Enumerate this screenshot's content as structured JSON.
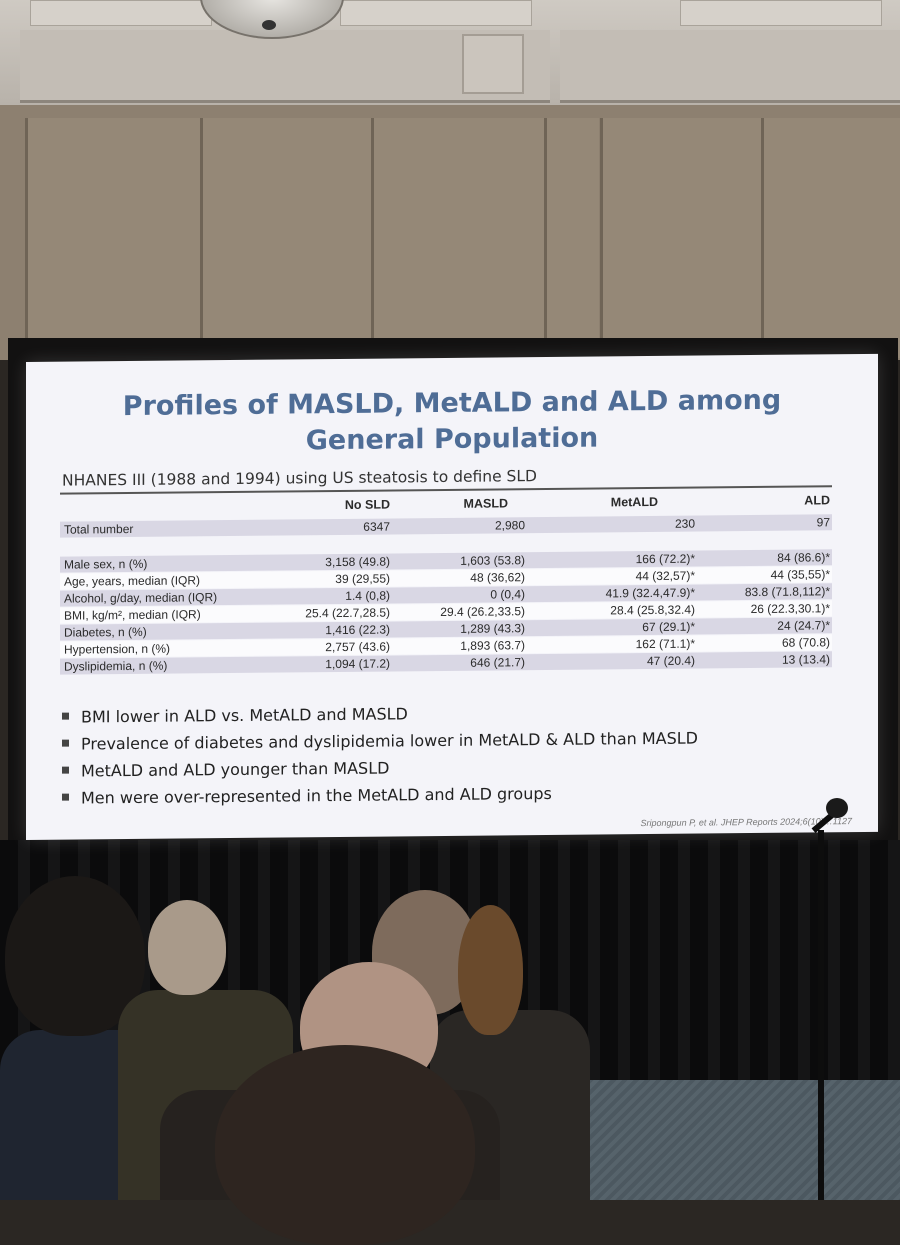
{
  "slide": {
    "title_line1": "Profiles of MASLD, MetALD and ALD among",
    "title_line2": "General Population",
    "subtitle": "NHANES III (1988 and 1994) using US steatosis to define SLD",
    "columns": [
      "No SLD",
      "MASLD",
      "MetALD",
      "ALD"
    ],
    "rows": [
      {
        "label": "Total number",
        "values": [
          "6347",
          "2,980",
          "230",
          "97"
        ]
      },
      {
        "label": "Male sex, n (%)",
        "values": [
          "3,158 (49.8)",
          "1,603 (53.8)",
          "166 (72.2)*",
          "84 (86.6)*"
        ]
      },
      {
        "label": "Age, years, median (IQR)",
        "values": [
          "39 (29,55)",
          "48 (36,62)",
          "44 (32,57)*",
          "44 (35,55)*"
        ]
      },
      {
        "label": "Alcohol, g/day, median (IQR)",
        "values": [
          "1.4 (0,8)",
          "0 (0,4)",
          "41.9 (32.4,47.9)*",
          "83.8 (71.8,112)*"
        ]
      },
      {
        "label": "BMI, kg/m², median (IQR)",
        "values": [
          "25.4 (22.7,28.5)",
          "29.4 (26.2,33.5)",
          "28.4 (25.8,32.4)",
          "26 (22.3,30.1)*"
        ]
      },
      {
        "label": "Diabetes, n (%)",
        "values": [
          "1,416 (22.3)",
          "1,289 (43.3)",
          "67 (29.1)*",
          "24 (24.7)*"
        ]
      },
      {
        "label": "Hypertension, n (%)",
        "values": [
          "2,757 (43.6)",
          "1,893 (63.7)",
          "162 (71.1)*",
          "68 (70.8)"
        ]
      },
      {
        "label": "Dyslipidemia, n (%)",
        "values": [
          "1,094 (17.2)",
          "646 (21.7)",
          "47 (20.4)",
          "13 (13.4)"
        ]
      }
    ],
    "bullets": [
      "BMI lower in ALD vs. MetALD and MASLD",
      "Prevalence of diabetes and dyslipidemia lower in MetALD & ALD than MASLD",
      "MetALD and ALD younger than MASLD",
      "Men were over-represented in the MetALD and ALD groups"
    ],
    "citation": "Sripongpun P, et al. JHEP Reports 2024;6(10)…1127"
  }
}
